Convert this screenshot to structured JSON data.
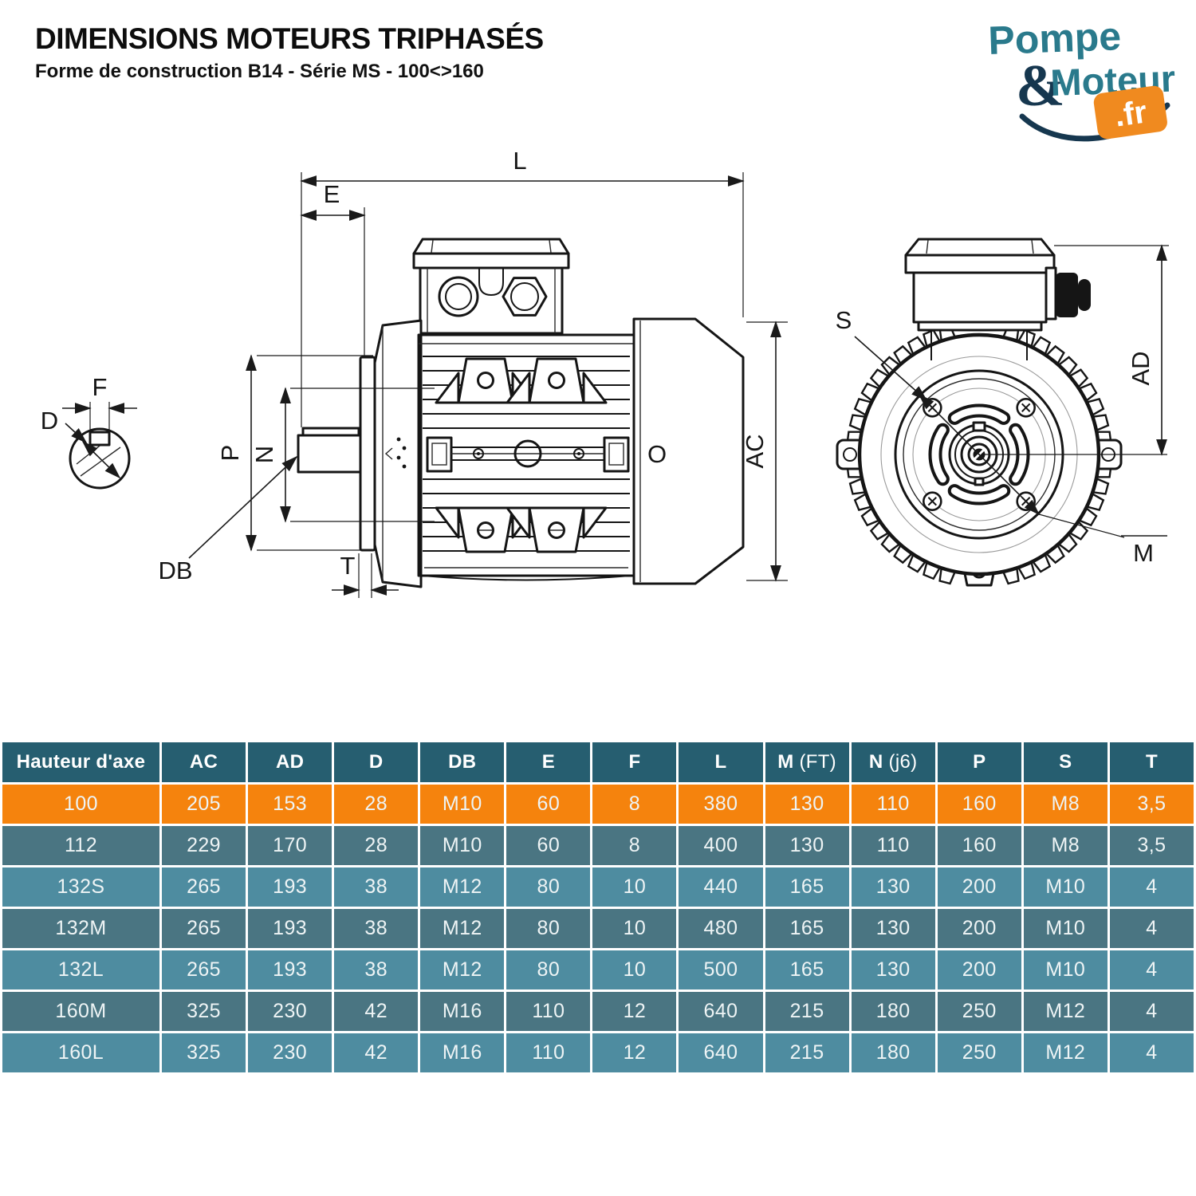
{
  "page": {
    "title": "DIMENSIONS MOTEURS TRIPHASÉS",
    "subtitle": "Forme de construction B14 - Série MS - 100<>160"
  },
  "logo": {
    "word1": "Pompe",
    "amp": "&",
    "word2": "Moteur",
    "tld": ".fr"
  },
  "diagram": {
    "labels": {
      "L": "L",
      "E": "E",
      "F": "F",
      "D": "D",
      "DB": "DB",
      "P": "P",
      "N": "N",
      "T": "T",
      "AC": "AC",
      "O": "O",
      "S": "S",
      "AD": "AD",
      "M": "M"
    }
  },
  "table": {
    "columns": [
      {
        "label": "Hauteur d'axe",
        "suffix": ""
      },
      {
        "label": "AC",
        "suffix": ""
      },
      {
        "label": "AD",
        "suffix": ""
      },
      {
        "label": "D",
        "suffix": ""
      },
      {
        "label": "DB",
        "suffix": ""
      },
      {
        "label": "E",
        "suffix": ""
      },
      {
        "label": "F",
        "suffix": ""
      },
      {
        "label": "L",
        "suffix": ""
      },
      {
        "label": "M",
        "suffix": " (FT)"
      },
      {
        "label": "N",
        "suffix": " (j6)"
      },
      {
        "label": "P",
        "suffix": ""
      },
      {
        "label": "S",
        "suffix": ""
      },
      {
        "label": "T",
        "suffix": ""
      }
    ],
    "rows": [
      {
        "name": "100",
        "variant": "orange",
        "values": [
          "205",
          "153",
          "28",
          "M10",
          "60",
          "8",
          "380",
          "130",
          "110",
          "160",
          "M8",
          "3,5"
        ]
      },
      {
        "name": "112",
        "variant": "dark",
        "values": [
          "229",
          "170",
          "28",
          "M10",
          "60",
          "8",
          "400",
          "130",
          "110",
          "160",
          "M8",
          "3,5"
        ]
      },
      {
        "name": "132S",
        "variant": "light",
        "values": [
          "265",
          "193",
          "38",
          "M12",
          "80",
          "10",
          "440",
          "165",
          "130",
          "200",
          "M10",
          "4"
        ]
      },
      {
        "name": "132M",
        "variant": "dark",
        "values": [
          "265",
          "193",
          "38",
          "M12",
          "80",
          "10",
          "480",
          "165",
          "130",
          "200",
          "M10",
          "4"
        ]
      },
      {
        "name": "132L",
        "variant": "light",
        "values": [
          "265",
          "193",
          "38",
          "M12",
          "80",
          "10",
          "500",
          "165",
          "130",
          "200",
          "M10",
          "4"
        ]
      },
      {
        "name": "160M",
        "variant": "dark",
        "values": [
          "325",
          "230",
          "42",
          "M16",
          "110",
          "12",
          "640",
          "215",
          "180",
          "250",
          "M12",
          "4"
        ]
      },
      {
        "name": "160L",
        "variant": "light",
        "values": [
          "325",
          "230",
          "42",
          "M16",
          "110",
          "12",
          "640",
          "215",
          "180",
          "250",
          "M12",
          "4"
        ]
      }
    ]
  },
  "colors": {
    "accent_orange": "#F5830D",
    "table_header_bg": "#265E70",
    "row_dark_bg": "#4A7582",
    "row_light_bg": "#4E8CA0",
    "logo_teal": "#2A7A8C",
    "logo_navy": "#16374F",
    "logo_orange": "#F08A1F",
    "line_color": "#1A1A1A"
  }
}
